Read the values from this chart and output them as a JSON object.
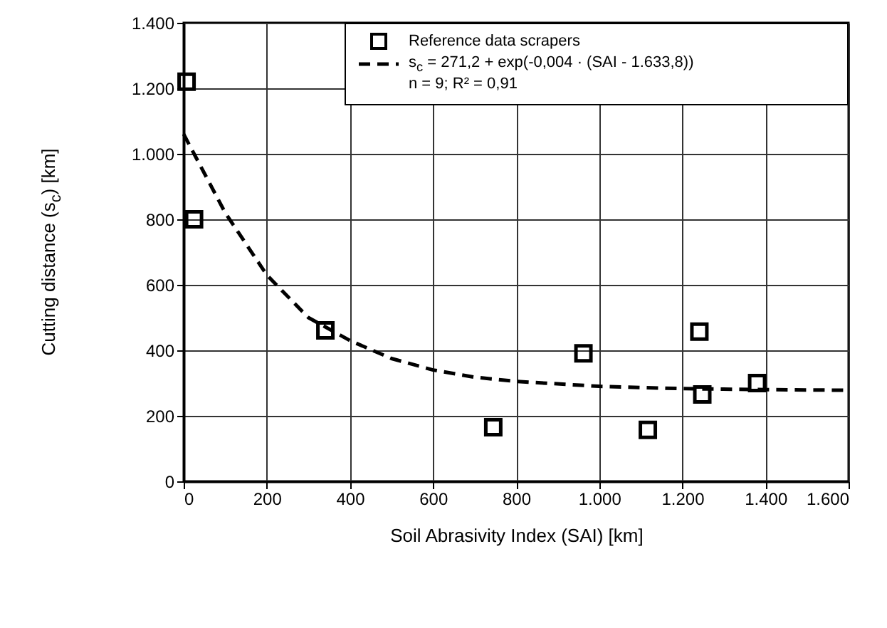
{
  "chart_data": {
    "type": "scatter",
    "xlabel": "Soil Abrasivity Index (SAI) [km]",
    "ylabel": "Cutting distance (s$_{c}$) [km]",
    "xlim": [
      0,
      1600
    ],
    "ylim": [
      0,
      1400
    ],
    "xticks": [
      0,
      200,
      400,
      600,
      800,
      {
        "value": 1000,
        "label": "1.000"
      },
      {
        "value": 1200,
        "label": "1.200"
      },
      {
        "value": 1400,
        "label": "1.400"
      },
      {
        "value": 1600,
        "label": "1.600"
      }
    ],
    "yticks": [
      0,
      200,
      400,
      600,
      800,
      {
        "value": 1000,
        "label": "1.000"
      },
      {
        "value": 1200,
        "label": "1.200"
      },
      {
        "value": 1400,
        "label": "1.400"
      }
    ],
    "grid": true,
    "legend": "top right",
    "marker": "square",
    "series": [
      {
        "name": "Reference data scrapers",
        "color": "#000000",
        "x": [
          7,
          25,
          341,
          745,
          962,
          1117,
          1241,
          1248,
          1380
        ],
        "values": [
          1220,
          800,
          461,
          165,
          391,
          157,
          457,
          265,
          300
        ]
      },
      {
        "name": "s$_{c}$ = 271,2 + exp(-0,004 · (SAI - 1.633,8))",
        "type": "line",
        "line_style": "dashed",
        "marker": "none",
        "color": "#000000",
        "x": [
          0,
          100,
          200,
          300,
          400,
          500,
          600,
          700,
          800,
          1000,
          1200,
          1400,
          1600
        ],
        "values": [
          1060,
          820,
          630,
          500,
          430,
          375,
          340,
          318,
          305,
          290,
          283,
          280,
          278
        ]
      }
    ],
    "annotations": [
      "n = 9; R² = 0,91"
    ]
  }
}
